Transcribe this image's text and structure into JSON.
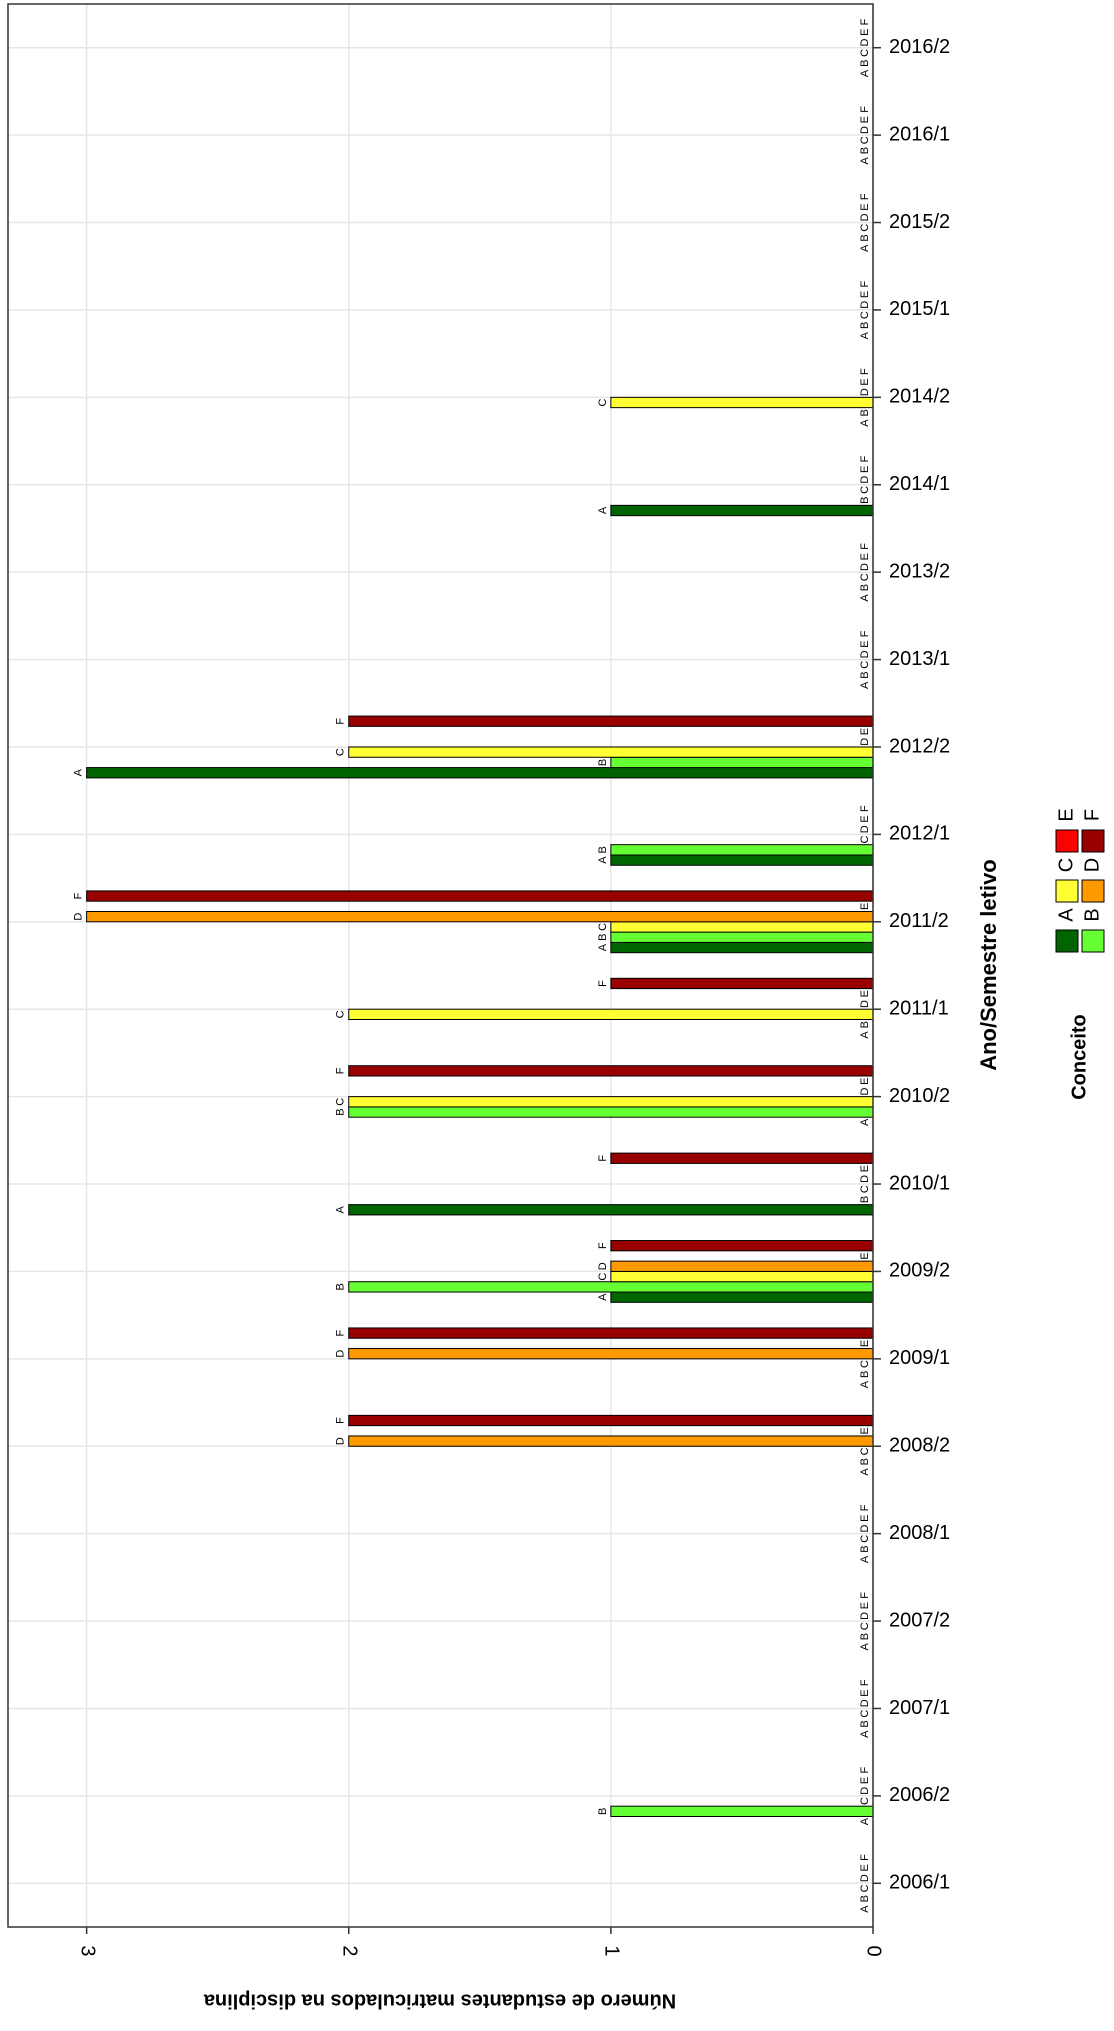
{
  "chart_data": {
    "type": "bar",
    "orientation": "horizontal",
    "x_label": "Ano/Semestre letivo",
    "y_label": "Número de estudantes matriculados na disciplina",
    "legend_title": "Conceito",
    "categories": [
      "2006/1",
      "2006/2",
      "2007/1",
      "2007/2",
      "2008/1",
      "2008/2",
      "2009/1",
      "2009/2",
      "2010/1",
      "2010/2",
      "2011/1",
      "2011/2",
      "2012/1",
      "2012/2",
      "2013/1",
      "2013/2",
      "2014/1",
      "2014/2",
      "2015/1",
      "2015/2",
      "2016/1",
      "2016/2"
    ],
    "series": [
      {
        "name": "A",
        "color": "#006400",
        "values": [
          0,
          0,
          0,
          0,
          0,
          0,
          0,
          1,
          2,
          0,
          0,
          1,
          1,
          3,
          0,
          0,
          1,
          0,
          0,
          0,
          0,
          0
        ]
      },
      {
        "name": "B",
        "color": "#66ff33",
        "values": [
          0,
          1,
          0,
          0,
          0,
          0,
          0,
          2,
          0,
          2,
          0,
          1,
          1,
          1,
          0,
          0,
          0,
          0,
          0,
          0,
          0,
          0
        ]
      },
      {
        "name": "C",
        "color": "#ffff33",
        "values": [
          0,
          0,
          0,
          0,
          0,
          0,
          0,
          1,
          0,
          2,
          2,
          1,
          0,
          2,
          0,
          0,
          0,
          1,
          0,
          0,
          0,
          0
        ]
      },
      {
        "name": "D",
        "color": "#ff9900",
        "values": [
          0,
          0,
          0,
          0,
          0,
          2,
          2,
          1,
          0,
          0,
          0,
          3,
          0,
          0,
          0,
          0,
          0,
          0,
          0,
          0,
          0,
          0
        ]
      },
      {
        "name": "E",
        "color": "#ff0000",
        "values": [
          0,
          0,
          0,
          0,
          0,
          0,
          0,
          0,
          0,
          0,
          0,
          0,
          0,
          0,
          0,
          0,
          0,
          0,
          0,
          0,
          0,
          0
        ]
      },
      {
        "name": "F",
        "color": "#990000",
        "values": [
          0,
          0,
          0,
          0,
          0,
          2,
          2,
          1,
          1,
          2,
          1,
          3,
          0,
          2,
          0,
          0,
          0,
          0,
          0,
          0,
          0,
          0
        ]
      }
    ],
    "ylim": [
      0,
      3.3
    ],
    "yticks": [
      0,
      1,
      2,
      3
    ],
    "grid": true
  }
}
